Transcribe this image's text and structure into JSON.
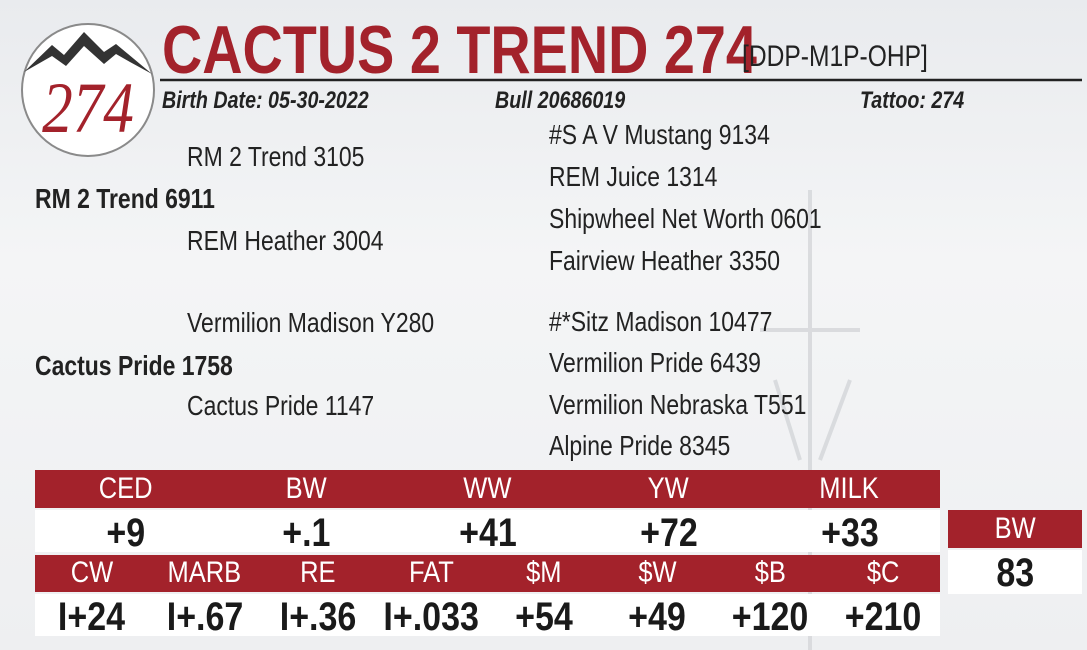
{
  "header": {
    "logo_text": "274",
    "title": "CACTUS 2 TREND 274",
    "designation": "[DDP-M1P-OHP]",
    "birth_date": "Birth Date: 05-30-2022",
    "registration": "Bull 20686019",
    "tattoo": "Tattoo: 274"
  },
  "pedigree": {
    "sire": "RM 2 Trend 6911",
    "sire_parents": [
      "RM 2 Trend 3105",
      "REM Heather 3004"
    ],
    "sire_grandparents": [
      "#S A V Mustang 9134",
      "REM Juice 1314",
      "Shipwheel Net Worth 0601",
      "Fairview Heather 3350"
    ],
    "dam": "Cactus Pride 1758",
    "dam_parents": [
      "Vermilion Madison Y280",
      "Cactus Pride 1147"
    ],
    "dam_grandparents": [
      "#*Sitz Madison 10477",
      "Vermilion Pride 6439",
      "Vermilion Nebraska T551",
      "Alpine Pride 8345"
    ]
  },
  "epd_row1": {
    "headers": [
      "CED",
      "BW",
      "WW",
      "YW",
      "MILK"
    ],
    "values": [
      "+9",
      "+.1",
      "+41",
      "+72",
      "+33"
    ]
  },
  "epd_row2": {
    "headers": [
      "CW",
      "MARB",
      "RE",
      "FAT",
      "$M",
      "$W",
      "$B",
      "$C"
    ],
    "values": [
      "I+24",
      "I+.67",
      "I+.36",
      "I+.033",
      "+54",
      "+49",
      "+120",
      "+210"
    ]
  },
  "weight": {
    "header": "BW",
    "value": "83"
  }
}
